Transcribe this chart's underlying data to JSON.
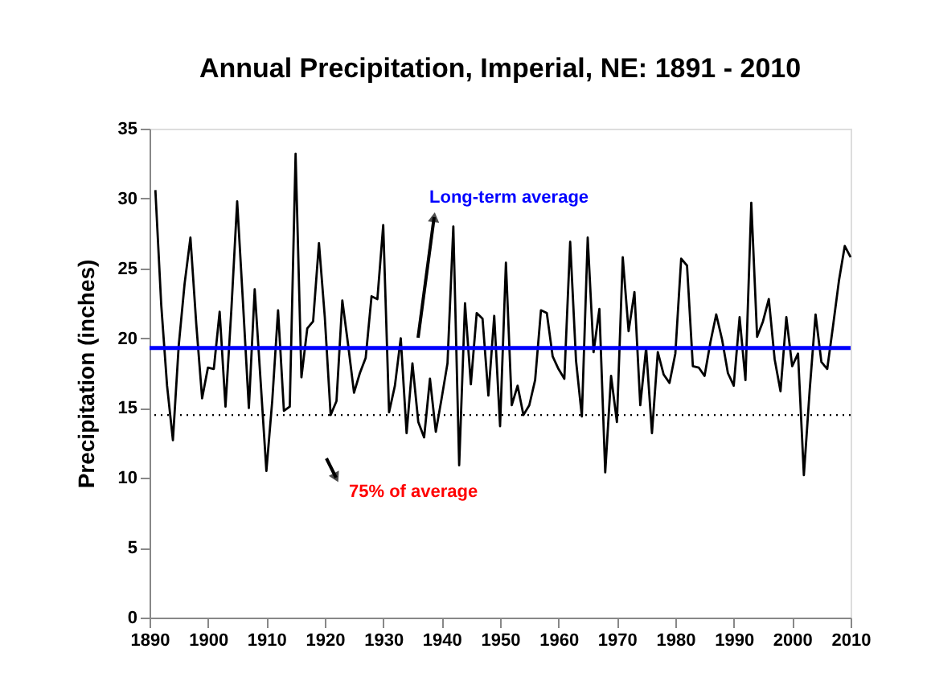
{
  "chart_data": {
    "type": "line",
    "title": "Annual Precipitation, Imperial, NE: 1891 - 2010",
    "ylabel": "Precipitation (inches)",
    "x": [
      1891,
      1892,
      1893,
      1894,
      1895,
      1896,
      1897,
      1898,
      1899,
      1900,
      1901,
      1902,
      1903,
      1904,
      1905,
      1906,
      1907,
      1908,
      1909,
      1910,
      1911,
      1912,
      1913,
      1914,
      1915,
      1916,
      1917,
      1918,
      1919,
      1920,
      1921,
      1922,
      1923,
      1924,
      1925,
      1926,
      1927,
      1928,
      1929,
      1930,
      1931,
      1932,
      1933,
      1934,
      1935,
      1936,
      1937,
      1938,
      1939,
      1940,
      1941,
      1942,
      1943,
      1944,
      1945,
      1946,
      1947,
      1948,
      1949,
      1950,
      1951,
      1952,
      1953,
      1954,
      1955,
      1956,
      1957,
      1958,
      1959,
      1960,
      1961,
      1962,
      1963,
      1964,
      1965,
      1966,
      1967,
      1968,
      1969,
      1970,
      1971,
      1972,
      1973,
      1974,
      1975,
      1976,
      1977,
      1978,
      1979,
      1980,
      1981,
      1982,
      1983,
      1984,
      1985,
      1986,
      1987,
      1988,
      1989,
      1990,
      1991,
      1992,
      1993,
      1994,
      1995,
      1996,
      1997,
      1998,
      1999,
      2000,
      2001,
      2002,
      2003,
      2004,
      2005,
      2006,
      2007,
      2008,
      2009,
      2010
    ],
    "series": [
      {
        "color": "#000000",
        "values": [
          30.6,
          22.4,
          16.6,
          12.7,
          19.5,
          23.9,
          27.2,
          21.0,
          15.7,
          17.9,
          17.8,
          21.9,
          15.1,
          22.0,
          29.8,
          22.5,
          15.0,
          23.5,
          17.0,
          10.5,
          15.5,
          22.0,
          14.8,
          15.1,
          33.2,
          17.2,
          20.7,
          21.2,
          26.8,
          21.5,
          14.5,
          15.5,
          22.7,
          19.5,
          16.1,
          17.5,
          18.6,
          23.0,
          22.8,
          28.1,
          14.7,
          16.6,
          20.0,
          13.2,
          18.2,
          14.0,
          12.9,
          17.1,
          13.3,
          15.7,
          18.2,
          28.0,
          10.9,
          22.5,
          16.7,
          21.8,
          21.4,
          15.9,
          21.6,
          13.7,
          25.4,
          15.2,
          16.6,
          14.5,
          15.2,
          17.0,
          22.0,
          21.8,
          18.7,
          17.8,
          17.1,
          26.9,
          18.4,
          14.4,
          27.2,
          19.0,
          22.1,
          10.4,
          17.3,
          14.0,
          25.8,
          20.5,
          23.3,
          15.2,
          19.3,
          13.2,
          19.0,
          17.4,
          16.8,
          18.9,
          25.7,
          25.2,
          18.0,
          17.9,
          17.3,
          19.7,
          21.7,
          19.9,
          17.5,
          16.6,
          21.5,
          17.0,
          29.7,
          20.1,
          21.2,
          22.8,
          18.5,
          16.2,
          21.5,
          18.0,
          18.9,
          10.2,
          16.3,
          21.7,
          18.3,
          17.8,
          20.9,
          24.1,
          26.6,
          25.8
        ]
      }
    ],
    "xlim": [
      1890,
      2010
    ],
    "xticks": [
      1890,
      1900,
      1910,
      1920,
      1930,
      1940,
      1950,
      1960,
      1970,
      1980,
      1990,
      2000,
      2010
    ],
    "ylim": [
      0,
      35
    ],
    "yticks": [
      0,
      5,
      10,
      15,
      20,
      25,
      30,
      35
    ],
    "ref_lines": [
      {
        "axis": "y",
        "value": 19.3,
        "label": "Long-term average",
        "color": "#0000ff",
        "line_style": "solid"
      },
      {
        "axis": "y",
        "value": 14.5,
        "label": "75% of average",
        "color": "#000000",
        "line_style": "dotted"
      }
    ],
    "grid": false,
    "marker": "none",
    "line_style": "solid"
  }
}
